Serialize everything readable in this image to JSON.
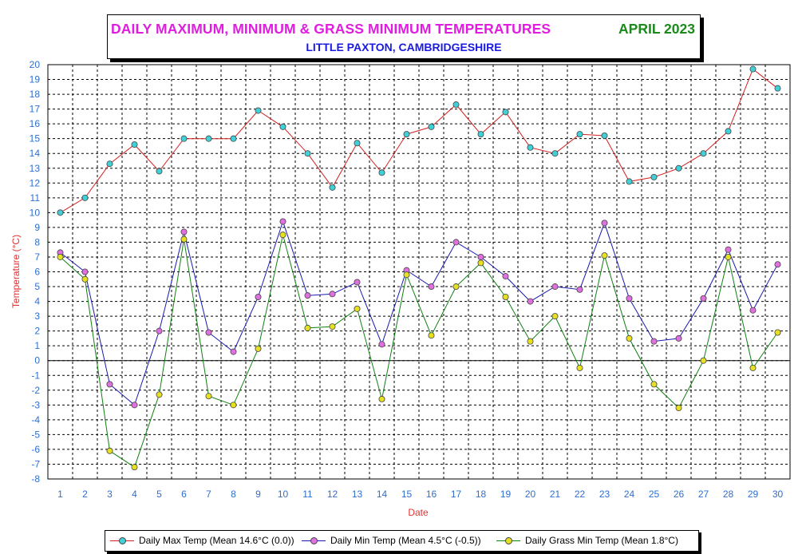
{
  "title": {
    "main": "DAILY MAXIMUM, MINIMUM & GRASS MINIMUM TEMPERATURES",
    "period": "APRIL 2023",
    "subtitle": "LITTLE PAXTON, CAMBRIDGESHIRE"
  },
  "colors": {
    "title_main": "#e11ce1",
    "title_period": "#1a8a1a",
    "subtitle": "#1a1ae0",
    "ticks": "#2d6fcf",
    "axis_label": "#e03030"
  },
  "chart_data": {
    "type": "line",
    "xlabel": "Date",
    "ylabel": "Temperature (°C)",
    "ylim": [
      -8,
      20
    ],
    "yticks": [
      -8,
      -7,
      -6,
      -5,
      -4,
      -3,
      -2,
      -1,
      0,
      1,
      2,
      3,
      4,
      5,
      6,
      7,
      8,
      9,
      10,
      11,
      12,
      13,
      14,
      15,
      16,
      17,
      18,
      19,
      20
    ],
    "x": [
      1,
      2,
      3,
      4,
      5,
      6,
      7,
      8,
      9,
      10,
      11,
      12,
      13,
      14,
      15,
      16,
      17,
      18,
      19,
      20,
      21,
      22,
      23,
      24,
      25,
      26,
      27,
      28,
      29,
      30
    ],
    "grid": true,
    "legend_position": "bottom",
    "series": [
      {
        "name": "Daily Max Temp (Mean 14.6°C (0.0))",
        "line_color": "#d42020",
        "marker_color": "#3fd0d8",
        "values": [
          10.0,
          11.0,
          13.3,
          14.6,
          12.8,
          15.0,
          15.0,
          15.0,
          16.9,
          15.8,
          14.0,
          11.7,
          14.7,
          12.7,
          15.3,
          15.8,
          17.3,
          15.3,
          16.8,
          14.4,
          14.0,
          15.3,
          15.2,
          12.1,
          12.4,
          13.0,
          14.0,
          15.5,
          19.7,
          18.4
        ]
      },
      {
        "name": "Daily Min Temp (Mean 4.5°C (-0.5))",
        "line_color": "#1818b0",
        "marker_color": "#e070e0",
        "values": [
          7.3,
          6.0,
          -1.6,
          -3.0,
          2.0,
          8.7,
          1.9,
          0.6,
          4.3,
          9.4,
          4.4,
          4.5,
          5.3,
          1.1,
          6.1,
          5.0,
          8.0,
          7.0,
          5.7,
          4.0,
          5.0,
          4.8,
          9.3,
          4.2,
          1.3,
          1.5,
          4.2,
          7.5,
          3.4,
          6.5
        ]
      },
      {
        "name": "Daily Grass Min Temp (Mean 1.8°C)",
        "line_color": "#108010",
        "marker_color": "#e6e020",
        "values": [
          7.0,
          5.5,
          -6.1,
          -7.2,
          -2.3,
          8.2,
          -2.4,
          -3.0,
          0.8,
          8.5,
          2.2,
          2.3,
          3.5,
          -2.6,
          5.8,
          1.7,
          5.0,
          6.6,
          4.3,
          1.3,
          3.0,
          -0.5,
          7.1,
          1.5,
          -1.6,
          -3.2,
          0.0,
          7.0,
          -0.5,
          1.9
        ]
      }
    ]
  }
}
